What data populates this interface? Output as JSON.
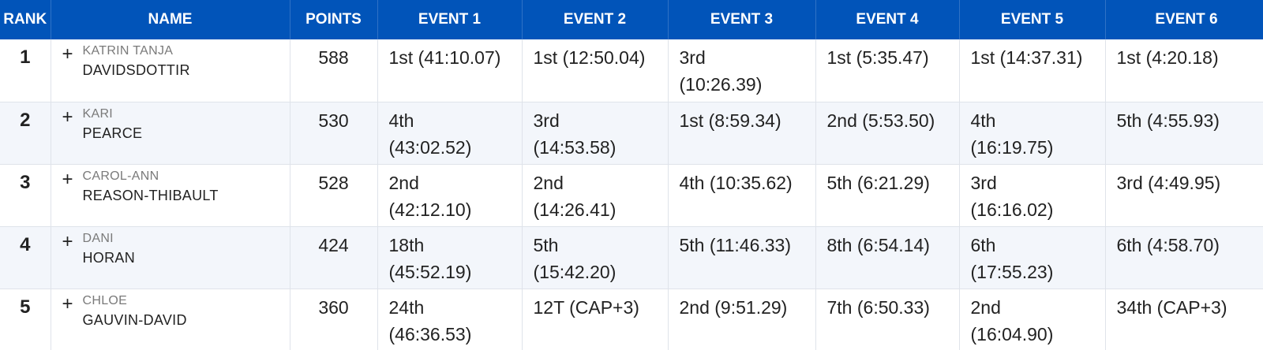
{
  "table": {
    "headers": [
      "RANK",
      "NAME",
      "POINTS",
      "EVENT 1",
      "EVENT 2",
      "EVENT 3",
      "EVENT 4",
      "EVENT 5",
      "EVENT 6"
    ],
    "rows": [
      {
        "rank": "1",
        "expand": "+",
        "first_name": "KATRIN TANJA",
        "last_name": "DAVIDSDOTTIR",
        "points": "588",
        "events": [
          [
            "1st (41:10.07)"
          ],
          [
            "1st (12:50.04)"
          ],
          [
            "3rd",
            "(10:26.39)"
          ],
          [
            "1st (5:35.47)"
          ],
          [
            "1st (14:37.31)"
          ],
          [
            "1st (4:20.18)"
          ]
        ]
      },
      {
        "rank": "2",
        "expand": "+",
        "first_name": "KARI",
        "last_name": "PEARCE",
        "points": "530",
        "events": [
          [
            "4th",
            "(43:02.52)"
          ],
          [
            "3rd",
            "(14:53.58)"
          ],
          [
            "1st (8:59.34)"
          ],
          [
            "2nd (5:53.50)"
          ],
          [
            "4th",
            "(16:19.75)"
          ],
          [
            "5th (4:55.93)"
          ]
        ]
      },
      {
        "rank": "3",
        "expand": "+",
        "first_name": "CAROL-ANN",
        "last_name": "REASON-THIBAULT",
        "points": "528",
        "events": [
          [
            "2nd",
            "(42:12.10)"
          ],
          [
            "2nd",
            "(14:26.41)"
          ],
          [
            "4th (10:35.62)"
          ],
          [
            "5th (6:21.29)"
          ],
          [
            "3rd",
            "(16:16.02)"
          ],
          [
            "3rd (4:49.95)"
          ]
        ]
      },
      {
        "rank": "4",
        "expand": "+",
        "first_name": "DANI",
        "last_name": "HORAN",
        "points": "424",
        "events": [
          [
            "18th",
            "(45:52.19)"
          ],
          [
            "5th",
            "(15:42.20)"
          ],
          [
            "5th (11:46.33)"
          ],
          [
            "8th (6:54.14)"
          ],
          [
            "6th",
            "(17:55.23)"
          ],
          [
            "6th (4:58.70)"
          ]
        ]
      },
      {
        "rank": "5",
        "expand": "+",
        "first_name": "CHLOE",
        "last_name": "GAUVIN-DAVID",
        "points": "360",
        "events": [
          [
            "24th",
            "(46:36.53)"
          ],
          [
            "12T (CAP+3)"
          ],
          [
            "2nd (9:51.29)"
          ],
          [
            "7th (6:50.33)"
          ],
          [
            "2nd",
            "(16:04.90)"
          ],
          [
            "34th (CAP+3)"
          ]
        ]
      }
    ]
  },
  "colors": {
    "header_bg": "#0154b9",
    "header_text": "#ffffff",
    "stripe_bg": "#f3f6fb"
  }
}
